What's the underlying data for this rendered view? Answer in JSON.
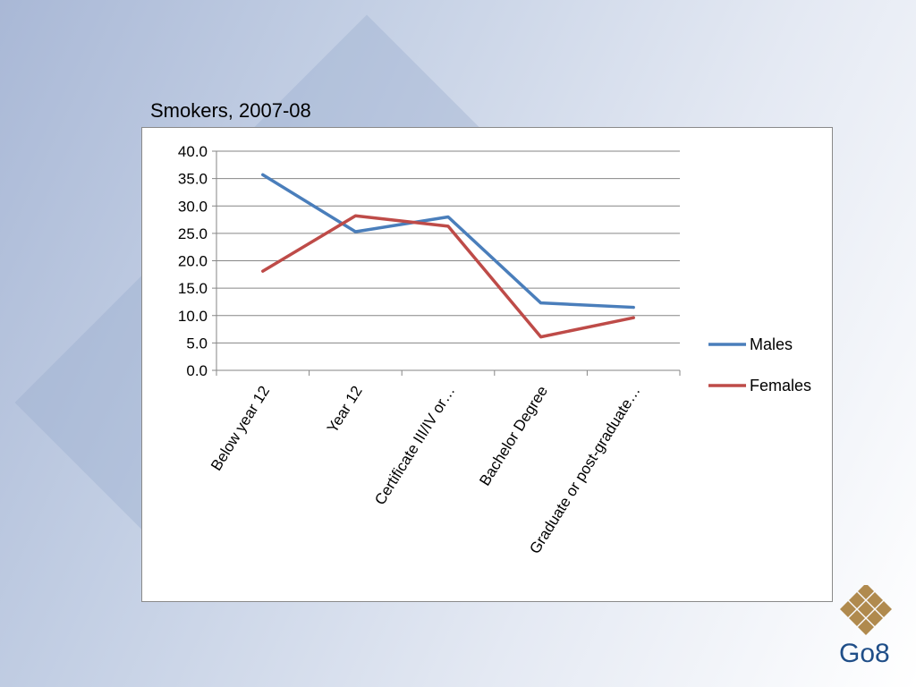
{
  "slide": {
    "title": "Smokers, 2007-08",
    "logo_text": "Go8"
  },
  "colors": {
    "males": "#4a7ebb",
    "females": "#be4b48",
    "grid": "#868686",
    "logo_gold": "#b08a4e",
    "logo_blue": "#1f4e88"
  },
  "chart_data": {
    "type": "line",
    "title": "",
    "xlabel": "",
    "ylabel": "",
    "ylim": [
      0,
      40
    ],
    "yticks": [
      "0.0",
      "5.0",
      "10.0",
      "15.0",
      "20.0",
      "25.0",
      "30.0",
      "35.0",
      "40.0"
    ],
    "grid": true,
    "legend_position": "right",
    "categories": [
      "Below year 12",
      "Year 12",
      "Certificate III/IV or…",
      "Bachelor Degree",
      "Graduate or post-graduate…"
    ],
    "series": [
      {
        "name": "Males",
        "color": "#4a7ebb",
        "values": [
          35.7,
          25.3,
          28.0,
          12.3,
          11.5
        ]
      },
      {
        "name": "Females",
        "color": "#be4b48",
        "values": [
          18.1,
          28.2,
          26.3,
          6.1,
          9.6
        ]
      }
    ]
  }
}
